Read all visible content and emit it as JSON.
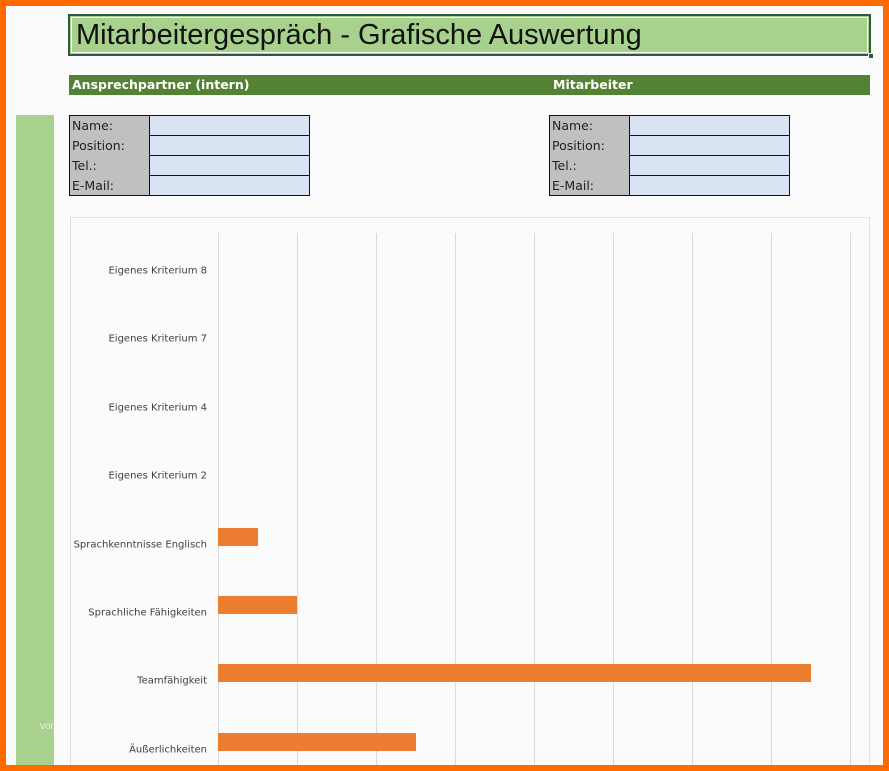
{
  "title": "Mitarbeitergespräch - Grafische Auswertung",
  "sections": {
    "left": "Ansprechpartner (intern)",
    "right": "Mitarbeiter"
  },
  "contact_left": {
    "fields": [
      {
        "label": "Name:",
        "value": ""
      },
      {
        "label": "Position:",
        "value": ""
      },
      {
        "label": "Tel.:",
        "value": ""
      },
      {
        "label": "E-Mail:",
        "value": ""
      }
    ]
  },
  "contact_right": {
    "fields": [
      {
        "label": "Name:",
        "value": ""
      },
      {
        "label": "Position:",
        "value": ""
      },
      {
        "label": "Tel.:",
        "value": ""
      },
      {
        "label": "E-Mail:",
        "value": ""
      }
    ]
  },
  "sidebar_text": "vor",
  "colors": {
    "accent_orange": "#ed7d31",
    "frame_orange": "#ff6a00",
    "header_green": "#548235",
    "title_green": "#a9d18e",
    "field_blue": "#dae3f3",
    "label_gray": "#c0c0c0"
  },
  "chart_data": {
    "type": "bar",
    "orientation": "horizontal",
    "title": "",
    "xlabel": "",
    "ylabel": "",
    "categories": [
      "Eigenes Kriterium 8",
      "Eigenes Kriterium 7",
      "Eigenes Kriterium 4",
      "Eigenes Kriterium 2",
      "Sprachkenntnisse Englisch",
      "Sprachliche Fähigkeiten",
      "Teamfähigkeit",
      "Äußerlichkeiten"
    ],
    "values": [
      0,
      0,
      0,
      0,
      0.5,
      1,
      7.5,
      2.5
    ],
    "xlim": [
      0,
      8
    ],
    "grid": true,
    "gridline_count": 9,
    "tick_labels_visible": false,
    "legend": "none",
    "bar_color": "#ed7d31"
  }
}
